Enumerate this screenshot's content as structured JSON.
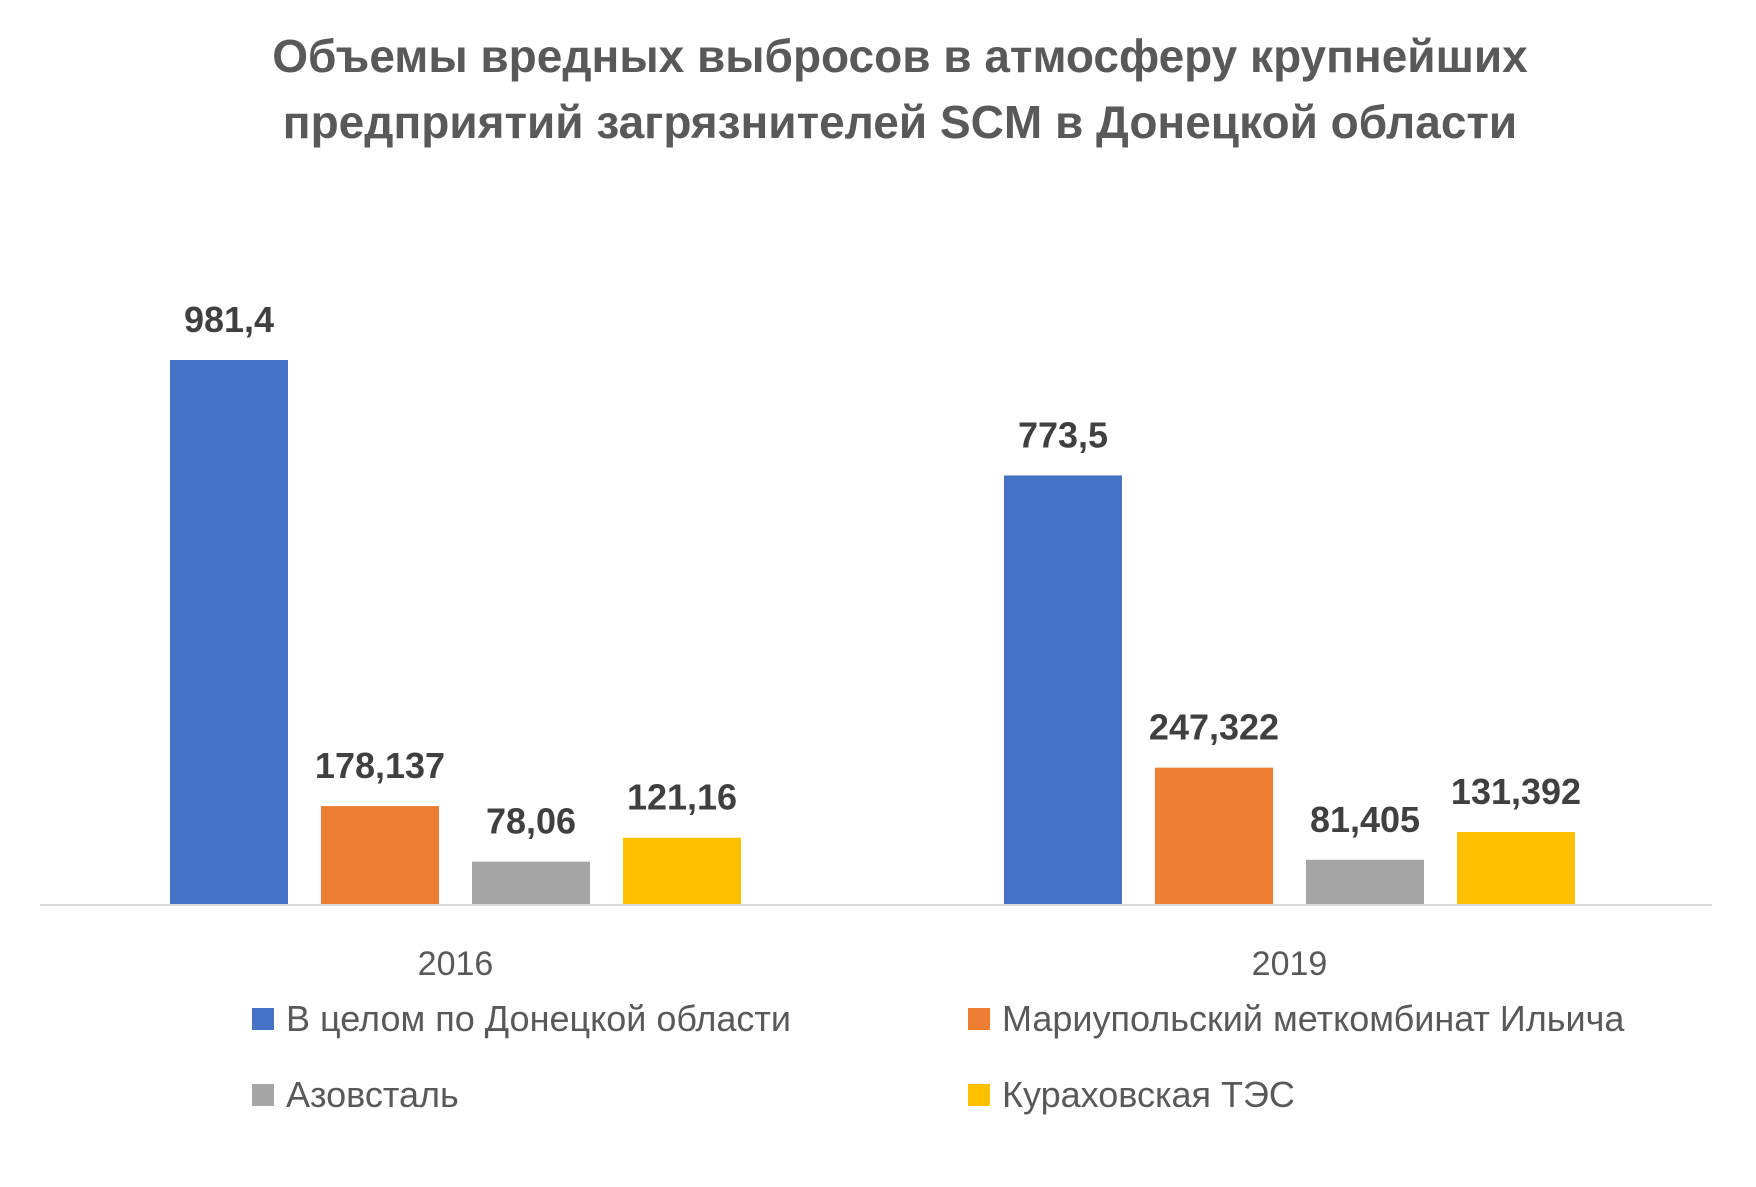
{
  "chart_data": {
    "type": "bar",
    "title": [
      "Объемы вредных выбросов в атмосферу крупнейших",
      "предприятий загрязнителей SCM в Донецкой области"
    ],
    "categories": [
      "2016",
      "2019"
    ],
    "series": [
      {
        "name": "В целом по Донецкой области",
        "color": "#4472C4",
        "values": [
          981.4,
          773.5
        ],
        "labels": [
          "981,4",
          "773,5"
        ]
      },
      {
        "name": "Мариупольский меткомбинат Ильича",
        "color": "#ED7D31",
        "values": [
          178.137,
          247.322
        ],
        "labels": [
          "178,137",
          "247,322"
        ]
      },
      {
        "name": "Азовсталь",
        "color": "#A5A5A5",
        "values": [
          78.06,
          81.405
        ],
        "labels": [
          "78,06",
          "81,405"
        ]
      },
      {
        "name": "Кураховская ТЭС",
        "color": "#FFC000",
        "values": [
          121.16,
          131.392
        ],
        "labels": [
          "121,16",
          "131,392"
        ]
      }
    ],
    "ylim": [
      0,
      981.4
    ],
    "gridlines": false,
    "legend_position": "bottom"
  }
}
